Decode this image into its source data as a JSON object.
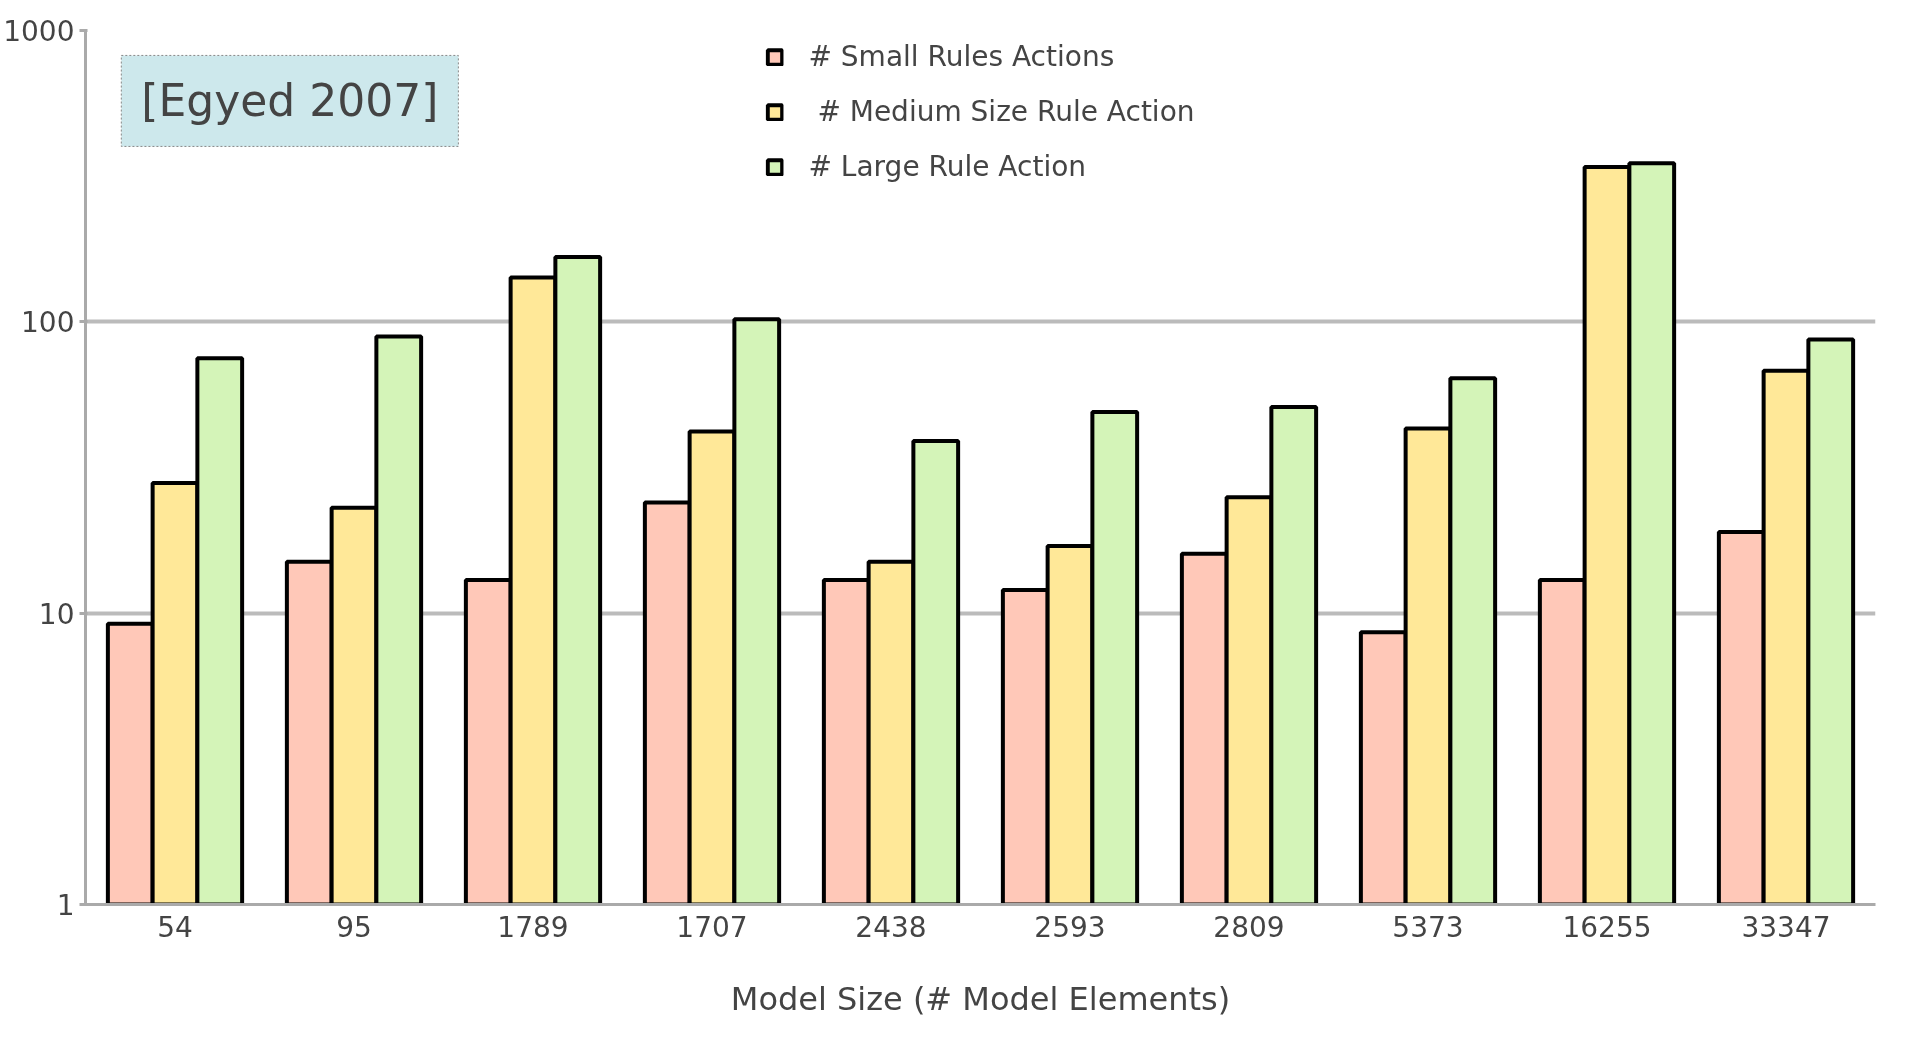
{
  "chart_data": {
    "type": "bar",
    "xlabel": "Model Size (# Model Elements)",
    "categories": [
      "54",
      "95",
      "1789",
      "1707",
      "2438",
      "2593",
      "2809",
      "5373",
      "16255",
      "33347"
    ],
    "series": [
      {
        "name": "# Small Rules Actions",
        "color": "#ffc8b8",
        "values": [
          9.2,
          15,
          13,
          24,
          13,
          12,
          16,
          8.6,
          13,
          19
        ]
      },
      {
        "name": " # Medium Size Rule Action",
        "color": "#ffe898",
        "values": [
          28,
          23,
          142,
          42,
          15,
          17,
          25,
          43,
          340,
          68
        ]
      },
      {
        "name": "# Large Rule Action",
        "color": "#d4f4b8",
        "values": [
          75,
          89,
          167,
          102,
          39,
          49,
          51,
          64,
          350,
          87
        ]
      }
    ],
    "log": true,
    "ylim": [
      1,
      1000
    ],
    "yticks": [
      1,
      10,
      100,
      1000
    ],
    "grid": "y",
    "legend": "top",
    "annotations": [
      "[Egyed 2007]"
    ]
  }
}
